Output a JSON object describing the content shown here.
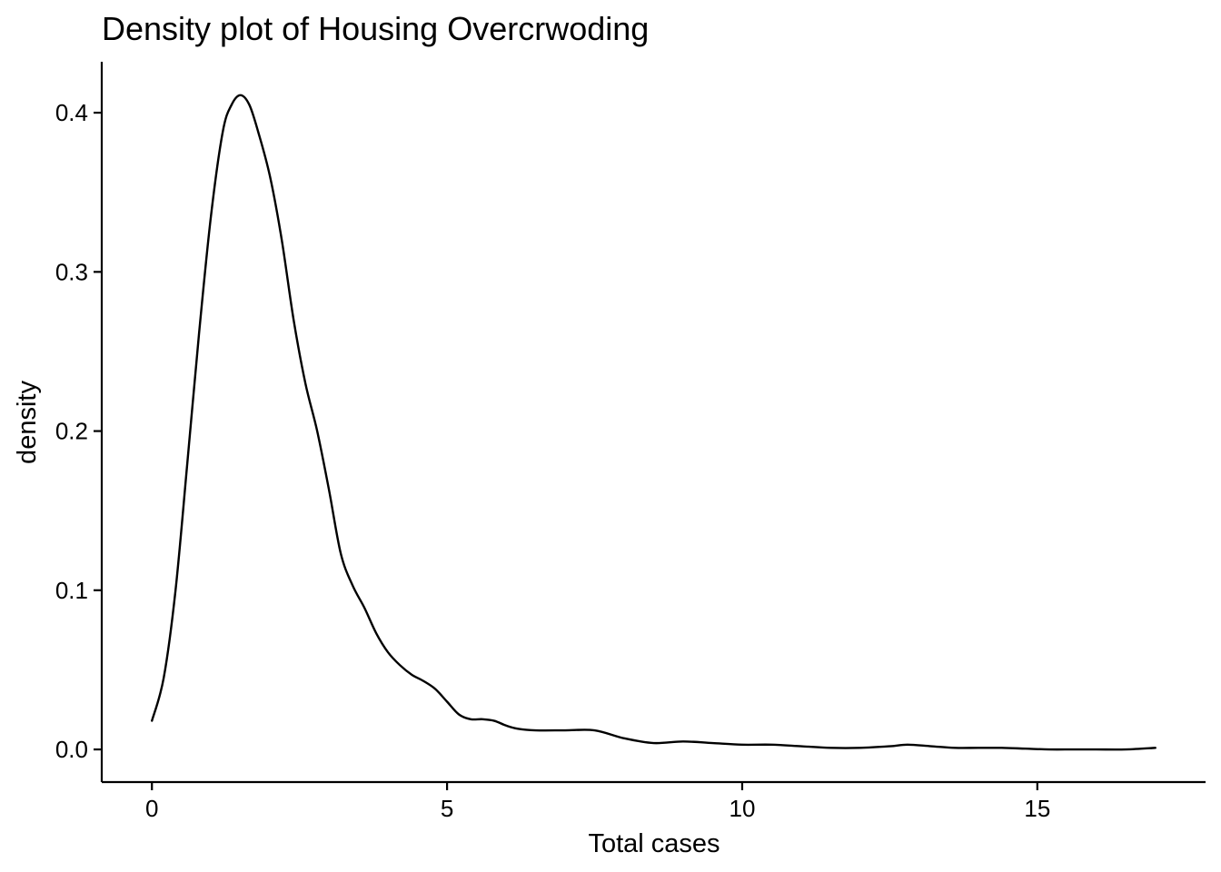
{
  "chart_data": {
    "type": "line",
    "title": "Density plot of Housing Overcrwoding",
    "xlabel": "Total cases",
    "ylabel": "density",
    "xlim": [
      -0.85,
      17.85
    ],
    "ylim": [
      -0.0205,
      0.432
    ],
    "x_ticks": [
      {
        "value": 0,
        "label": "0"
      },
      {
        "value": 5,
        "label": "5"
      },
      {
        "value": 10,
        "label": "10"
      },
      {
        "value": 15,
        "label": "15"
      }
    ],
    "y_ticks": [
      {
        "value": 0.0,
        "label": "0.0"
      },
      {
        "value": 0.1,
        "label": "0.1"
      },
      {
        "value": 0.2,
        "label": "0.2"
      },
      {
        "value": 0.3,
        "label": "0.3"
      },
      {
        "value": 0.4,
        "label": "0.4"
      }
    ],
    "grid": false,
    "legend": "none",
    "series": [
      {
        "color": "#000000",
        "x": [
          0.0,
          0.2,
          0.4,
          0.6,
          0.8,
          1.0,
          1.2,
          1.35,
          1.5,
          1.65,
          1.8,
          2.0,
          2.2,
          2.4,
          2.6,
          2.8,
          3.0,
          3.2,
          3.4,
          3.6,
          3.8,
          4.0,
          4.2,
          4.4,
          4.6,
          4.8,
          5.0,
          5.2,
          5.4,
          5.6,
          5.8,
          6.0,
          6.2,
          6.5,
          7.0,
          7.5,
          8.0,
          8.5,
          9.0,
          9.5,
          10.0,
          10.5,
          11.0,
          11.5,
          12.0,
          12.5,
          12.8,
          13.2,
          13.6,
          14.0,
          14.4,
          14.8,
          15.2,
          15.6,
          16.0,
          16.5,
          17.0
        ],
        "y": [
          0.018,
          0.045,
          0.1,
          0.18,
          0.262,
          0.335,
          0.388,
          0.405,
          0.411,
          0.405,
          0.388,
          0.36,
          0.32,
          0.27,
          0.23,
          0.2,
          0.163,
          0.123,
          0.103,
          0.089,
          0.073,
          0.061,
          0.053,
          0.047,
          0.043,
          0.038,
          0.03,
          0.022,
          0.019,
          0.019,
          0.018,
          0.015,
          0.013,
          0.012,
          0.012,
          0.012,
          0.007,
          0.004,
          0.005,
          0.004,
          0.003,
          0.003,
          0.002,
          0.001,
          0.001,
          0.002,
          0.003,
          0.002,
          0.001,
          0.001,
          0.001,
          0.0005,
          0.0,
          0.0,
          0.0,
          0.0,
          0.001
        ]
      }
    ]
  }
}
